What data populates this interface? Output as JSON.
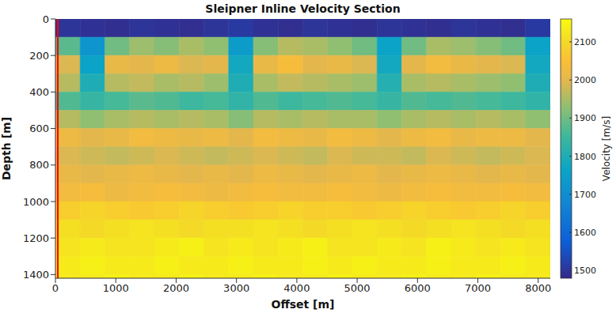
{
  "chart_data": {
    "type": "heatmap",
    "title": "Sleipner Inline Velocity Section",
    "xlabel": "Offset [m]",
    "ylabel": "Depth [m]",
    "xlim": [
      0,
      8200
    ],
    "ylim": [
      0,
      1420
    ],
    "xticks": [
      0,
      1000,
      2000,
      3000,
      4000,
      5000,
      6000,
      7000,
      8000
    ],
    "yticks": [
      0,
      200,
      400,
      600,
      800,
      1000,
      1200,
      1400
    ],
    "x_bins": [
      0,
      410,
      820,
      1230,
      1640,
      2050,
      2460,
      2870,
      3280,
      3690,
      4100,
      4510,
      4920,
      5330,
      5740,
      6150,
      6560,
      6970,
      7380,
      7790,
      8200
    ],
    "y_bins": [
      0,
      100,
      200,
      300,
      400,
      500,
      600,
      700,
      800,
      900,
      1000,
      1100,
      1200,
      1300,
      1400,
      1420
    ],
    "cells": [
      [
        1500,
        1495,
        1490,
        1500,
        1495,
        1490,
        1500,
        1510,
        1495,
        1490,
        1500,
        1495,
        1490,
        1500,
        1495,
        1490,
        1500,
        1495,
        1490,
        1510
      ],
      [
        1880,
        1720,
        1900,
        1940,
        1920,
        1950,
        1930,
        1740,
        1920,
        1960,
        1950,
        1930,
        1900,
        1760,
        1900,
        1950,
        1940,
        1920,
        1900,
        1760
      ],
      [
        1990,
        1760,
        2010,
        2000,
        2020,
        1990,
        2000,
        1780,
        2010,
        2040,
        2000,
        2010,
        1990,
        1780,
        2000,
        2030,
        2010,
        2000,
        1990,
        1780
      ],
      [
        1960,
        1800,
        1960,
        1970,
        1950,
        1960,
        1940,
        1800,
        1950,
        1970,
        1960,
        1950,
        1940,
        1810,
        1950,
        1960,
        1950,
        1940,
        1930,
        1800
      ],
      [
        1870,
        1840,
        1860,
        1880,
        1870,
        1850,
        1860,
        1830,
        1870,
        1850,
        1860,
        1870,
        1860,
        1840,
        1870,
        1860,
        1870,
        1860,
        1850,
        1830
      ],
      [
        1960,
        1930,
        1950,
        1960,
        1950,
        1960,
        1950,
        1920,
        1960,
        1950,
        1960,
        1950,
        1950,
        1930,
        1950,
        1960,
        1950,
        1960,
        1950,
        1930
      ],
      [
        2020,
        2000,
        2010,
        2030,
        2020,
        2010,
        2020,
        2000,
        2030,
        2020,
        2010,
        2030,
        2020,
        2000,
        2020,
        2030,
        2010,
        2020,
        2020,
        2000
      ],
      [
        1990,
        1980,
        1970,
        1980,
        1990,
        1980,
        1970,
        1980,
        1990,
        1980,
        1970,
        1990,
        1980,
        1980,
        1970,
        1990,
        1980,
        1970,
        1980,
        1990
      ],
      [
        2010,
        2000,
        2010,
        2020,
        2010,
        2000,
        2010,
        2000,
        2020,
        2010,
        2000,
        2010,
        2020,
        2000,
        2010,
        2020,
        2010,
        2000,
        2010,
        2000
      ],
      [
        2030,
        2040,
        2020,
        2030,
        2040,
        2030,
        2020,
        2030,
        2040,
        2030,
        2030,
        2040,
        2030,
        2020,
        2030,
        2040,
        2030,
        2030,
        2040,
        2030
      ],
      [
        2080,
        2090,
        2080,
        2070,
        2080,
        2090,
        2080,
        2070,
        2080,
        2090,
        2080,
        2080,
        2070,
        2080,
        2090,
        2080,
        2070,
        2080,
        2090,
        2080
      ],
      [
        2110,
        2100,
        2110,
        2120,
        2110,
        2100,
        2110,
        2110,
        2120,
        2110,
        2100,
        2110,
        2120,
        2110,
        2100,
        2110,
        2120,
        2110,
        2100,
        2110
      ],
      [
        2120,
        2130,
        2120,
        2120,
        2130,
        2140,
        2120,
        2130,
        2120,
        2130,
        2140,
        2120,
        2120,
        2130,
        2120,
        2140,
        2130,
        2120,
        2130,
        2120
      ],
      [
        2130,
        2140,
        2130,
        2130,
        2140,
        2130,
        2130,
        2140,
        2130,
        2130,
        2140,
        2130,
        2140,
        2130,
        2130,
        2140,
        2130,
        2130,
        2140,
        2130
      ],
      [
        2130,
        2130,
        2140,
        2130,
        2130,
        2140,
        2130,
        2130,
        2140,
        2130,
        2130,
        2140,
        2130,
        2130,
        2140,
        2130,
        2130,
        2140,
        2130,
        2130
      ]
    ],
    "colorbar": {
      "label": "Velocity [m/s]",
      "lim": [
        1480,
        2160
      ],
      "ticks": [
        1500,
        1600,
        1700,
        1800,
        1900,
        2000,
        2100
      ]
    },
    "vertical_line": {
      "x": 40,
      "color": "#ff0000"
    }
  }
}
